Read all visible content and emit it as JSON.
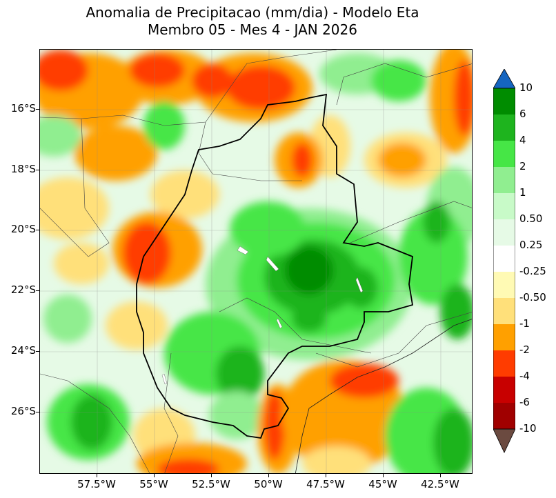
{
  "title": {
    "line1": "Anomalia de Precipitacao (mm/dia) - Modelo Eta",
    "line2": "Membro 05 - Mes 4 - JAN 2026"
  },
  "axes": {
    "lat_labels": [
      "16°S",
      "18°S",
      "20°S",
      "22°S",
      "24°S",
      "26°S"
    ],
    "lon_labels": [
      "57.5°W",
      "55°W",
      "52.5°W",
      "50°W",
      "47.5°W",
      "45°W",
      "42.5°W"
    ]
  },
  "colorbar": {
    "labels": [
      "10",
      "6",
      "4",
      "2",
      "1",
      "0.50",
      "0.25",
      "-0.25",
      "-0.50",
      "-1",
      "-2",
      "-4",
      "-6",
      "-10"
    ],
    "colors": {
      "over": "#1565c0",
      "c10": "#008c00",
      "c6": "#1eb41e",
      "c4": "#46e646",
      "c2": "#90ee90",
      "c1": "#c8fac8",
      "c05": "#e6fae6",
      "c025": "#ffffff",
      "n025": "#fffab4",
      "n05": "#ffe07a",
      "n1": "#ffa000",
      "n2": "#ff3c00",
      "n4": "#c80000",
      "n6": "#a00000",
      "under": "#6b4a40"
    }
  }
}
